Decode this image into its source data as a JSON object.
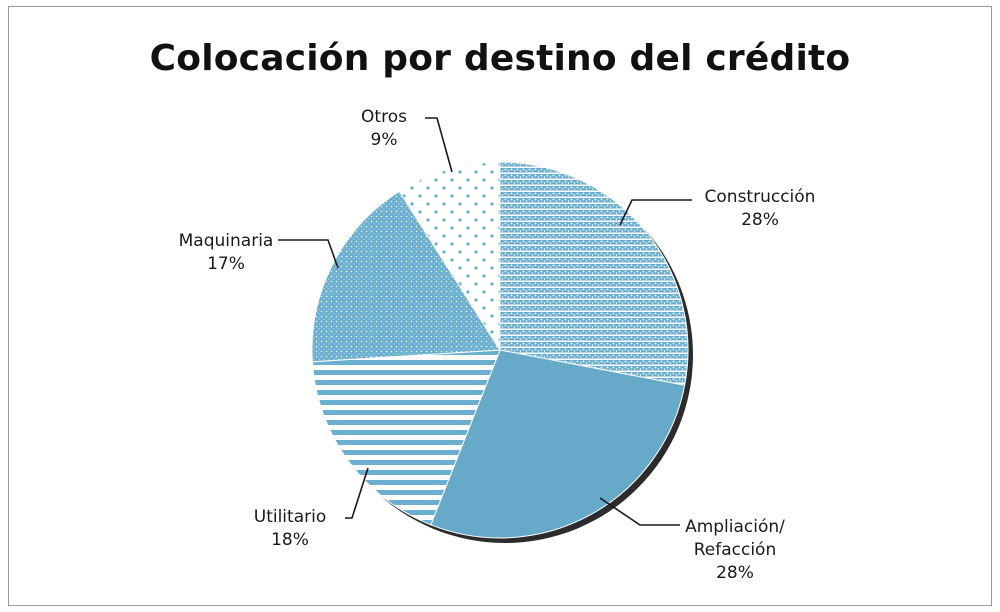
{
  "chart_data": {
    "type": "pie",
    "title": "Colocación por destino del crédito",
    "slices": [
      {
        "label": "Construcción",
        "label_lines": [
          "Construcción"
        ],
        "value": 28,
        "value_text": "28%",
        "pattern": "pat-dots-lines"
      },
      {
        "label": "Ampliación/Refacción",
        "label_lines": [
          "Ampliación/",
          "Refacción"
        ],
        "value": 28,
        "value_text": "28%",
        "pattern": "solid"
      },
      {
        "label": "Utilitario",
        "label_lines": [
          "Utilitario"
        ],
        "value": 18,
        "value_text": "18%",
        "pattern": "pat-hstripes"
      },
      {
        "label": "Maquinaria",
        "label_lines": [
          "Maquinaria"
        ],
        "value": 17,
        "value_text": "17%",
        "pattern": "pat-dense-dots"
      },
      {
        "label": "Otros",
        "label_lines": [
          "Otros"
        ],
        "value": 9,
        "value_text": "9%",
        "pattern": "pat-sparse-dots"
      }
    ],
    "colors": {
      "base": "#6aaed0",
      "dark": "#2c2c2c",
      "solid": "#67a9c9"
    }
  }
}
